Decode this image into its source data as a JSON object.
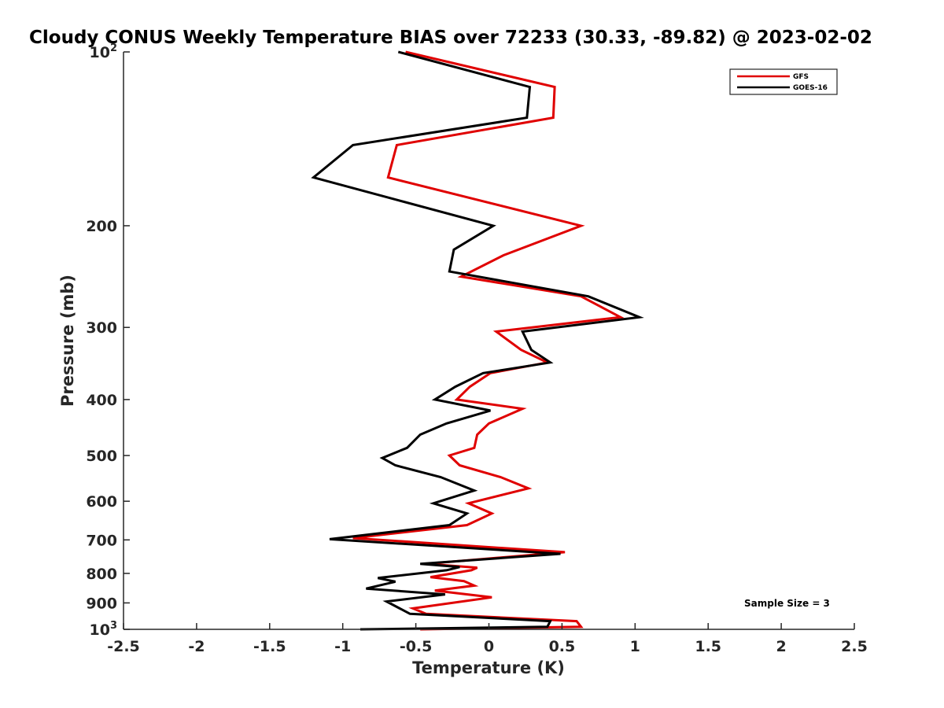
{
  "chart_data": {
    "type": "line",
    "title": "Cloudy CONUS Weekly Temperature BIAS over 72233 (30.33, -89.82) @ 2023-02-02",
    "xlabel": "Temperature (K)",
    "ylabel": "Pressure (mb)",
    "xlim": [
      -2.5,
      2.5
    ],
    "ylim": [
      100,
      1000
    ],
    "yscale": "log",
    "y_reversed": true,
    "grid": false,
    "legend_position": "top-right",
    "x_ticks": [
      -2.5,
      -2,
      -1.5,
      -1,
      -0.5,
      0,
      0.5,
      1,
      1.5,
      2,
      2.5
    ],
    "x_tick_labels": [
      "-2.5",
      "-2",
      "-1.5",
      "-1",
      "-0.5",
      "0",
      "0.5",
      "1",
      "1.5",
      "2",
      "2.5"
    ],
    "y_ticks": [
      100,
      200,
      300,
      400,
      500,
      600,
      700,
      800,
      900,
      1000
    ],
    "y_tick_labels": [
      {
        "base": "10",
        "exp": "2"
      },
      {
        "base": "200",
        "exp": ""
      },
      {
        "base": "300",
        "exp": ""
      },
      {
        "base": "400",
        "exp": ""
      },
      {
        "base": "500",
        "exp": ""
      },
      {
        "base": "600",
        "exp": ""
      },
      {
        "base": "700",
        "exp": ""
      },
      {
        "base": "800",
        "exp": ""
      },
      {
        "base": "900",
        "exp": ""
      },
      {
        "base": "10",
        "exp": "3"
      }
    ],
    "annotation": "Sample Size = 3",
    "series": [
      {
        "name": "GFS",
        "color": "#e00000",
        "points": [
          [
            -0.57,
            100
          ],
          [
            0.45,
            115
          ],
          [
            0.44,
            130
          ],
          [
            -0.63,
            145
          ],
          [
            -0.69,
            165
          ],
          [
            0.63,
            200
          ],
          [
            0.1,
            225
          ],
          [
            -0.19,
            245
          ],
          [
            0.63,
            265
          ],
          [
            0.9,
            288
          ],
          [
            0.05,
            305
          ],
          [
            0.22,
            328
          ],
          [
            0.4,
            345
          ],
          [
            0.01,
            360
          ],
          [
            -0.13,
            380
          ],
          [
            -0.22,
            400
          ],
          [
            0.23,
            415
          ],
          [
            0.0,
            440
          ],
          [
            -0.08,
            460
          ],
          [
            -0.1,
            485
          ],
          [
            -0.27,
            500
          ],
          [
            -0.2,
            520
          ],
          [
            0.08,
            545
          ],
          [
            0.27,
            570
          ],
          [
            -0.14,
            605
          ],
          [
            0.02,
            630
          ],
          [
            -0.15,
            660
          ],
          [
            -0.93,
            695
          ],
          [
            0.52,
            735
          ],
          [
            -0.43,
            770
          ],
          [
            -0.08,
            782
          ],
          [
            -0.12,
            790
          ],
          [
            -0.4,
            812
          ],
          [
            -0.17,
            825
          ],
          [
            -0.1,
            840
          ],
          [
            -0.37,
            857
          ],
          [
            0.02,
            880
          ],
          [
            -0.52,
            920
          ],
          [
            -0.43,
            940
          ],
          [
            0.6,
            968
          ],
          [
            0.63,
            990
          ],
          [
            -0.47,
            1000
          ]
        ]
      },
      {
        "name": "GOES-16",
        "color": "#000000",
        "points": [
          [
            -0.62,
            100
          ],
          [
            0.28,
            115
          ],
          [
            0.26,
            130
          ],
          [
            -0.93,
            145
          ],
          [
            -1.2,
            165
          ],
          [
            0.03,
            200
          ],
          [
            -0.24,
            220
          ],
          [
            -0.27,
            240
          ],
          [
            0.68,
            265
          ],
          [
            1.03,
            288
          ],
          [
            0.23,
            305
          ],
          [
            0.29,
            328
          ],
          [
            0.42,
            345
          ],
          [
            -0.04,
            360
          ],
          [
            -0.23,
            380
          ],
          [
            -0.37,
            400
          ],
          [
            0.01,
            418
          ],
          [
            -0.29,
            440
          ],
          [
            -0.47,
            460
          ],
          [
            -0.56,
            485
          ],
          [
            -0.73,
            505
          ],
          [
            -0.64,
            520
          ],
          [
            -0.33,
            545
          ],
          [
            -0.1,
            575
          ],
          [
            -0.38,
            605
          ],
          [
            -0.15,
            630
          ],
          [
            -0.27,
            660
          ],
          [
            -1.09,
            698
          ],
          [
            0.49,
            740
          ],
          [
            -0.47,
            770
          ],
          [
            -0.2,
            780
          ],
          [
            -0.29,
            790
          ],
          [
            -0.76,
            815
          ],
          [
            -0.64,
            827
          ],
          [
            -0.84,
            850
          ],
          [
            -0.3,
            870
          ],
          [
            -0.7,
            895
          ],
          [
            -0.54,
            940
          ],
          [
            0.42,
            968
          ],
          [
            0.4,
            990
          ],
          [
            -0.88,
            1000
          ]
        ]
      }
    ]
  }
}
